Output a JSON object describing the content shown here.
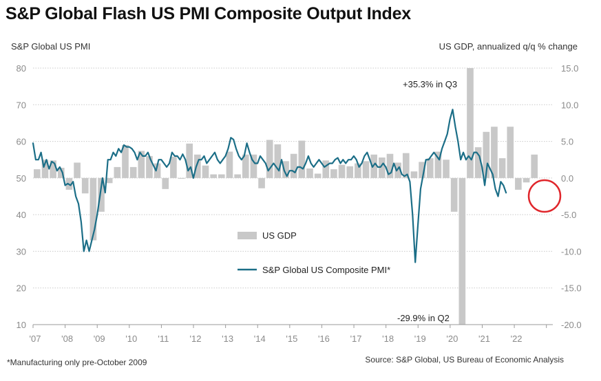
{
  "title": "S&P Global Flash US PMI Composite Output Index",
  "left_axis_title": "S&P Global US PMI",
  "right_axis_title": "US GDP, annualized q/q % change",
  "footnote": "*Manufacturing only pre-October 2009",
  "source": "Source: S&P Global, US Bureau of Economic Analysis",
  "colors": {
    "gdp": "#c8c8c8",
    "pmi": "#1b6e87",
    "highlight": "#e0262b",
    "grid": "#c9c9c9"
  },
  "chart_data": {
    "type": "bar+line",
    "title": "S&P Global Flash US PMI Composite Output Index",
    "ylabel_left": "S&P Global US PMI",
    "ylabel_right": "US GDP, annualized q/q % change",
    "ylim_left": [
      10,
      80
    ],
    "ylim_right": [
      -20,
      15
    ],
    "yticks_left": [
      "80",
      "70",
      "60",
      "50",
      "40",
      "30",
      "20",
      "10"
    ],
    "yticks_right": [
      "15.0",
      "10.0",
      "5.0",
      "0.0",
      "-5.0",
      "-10.0",
      "-15.0",
      "-20.0"
    ],
    "x_range": [
      2007,
      2023.2
    ],
    "x_ticks": [
      {
        "label": "'07",
        "year": 2007
      },
      {
        "label": "'08",
        "year": 2008
      },
      {
        "label": "'09",
        "year": 2009
      },
      {
        "label": "'10",
        "year": 2010
      },
      {
        "label": "'11",
        "year": 2011
      },
      {
        "label": "'12",
        "year": 2012
      },
      {
        "label": "'13",
        "year": 2013
      },
      {
        "label": "'14",
        "year": 2014
      },
      {
        "label": "'15",
        "year": 2015
      },
      {
        "label": "'16",
        "year": 2016
      },
      {
        "label": "'17",
        "year": 2017
      },
      {
        "label": "'18",
        "year": 2018
      },
      {
        "label": "'19",
        "year": 2019
      },
      {
        "label": "'20",
        "year": 2020
      },
      {
        "label": "'21",
        "year": 2021
      },
      {
        "label": "'22",
        "year": 2022
      }
    ],
    "gdp_start": 2007,
    "gdp_values": [
      1.2,
      2.5,
      2.4,
      1.4,
      -1.6,
      2.1,
      -2.1,
      -8.5,
      -4.6,
      -0.7,
      1.5,
      4.5,
      1.5,
      3.7,
      3.0,
      2.0,
      -1.5,
      2.9,
      -0.1,
      4.7,
      3.2,
      1.7,
      0.5,
      0.5,
      3.6,
      0.5,
      3.2,
      3.2,
      -1.4,
      5.2,
      4.6,
      2.3,
      3.3,
      5.1,
      1.3,
      0.6,
      2.4,
      1.2,
      1.8,
      1.6,
      2.0,
      2.3,
      3.2,
      2.8,
      3.3,
      2.1,
      3.4,
      0.9,
      2.2,
      2.7,
      3.6,
      2.5,
      -4.6,
      -29.9,
      35.3,
      4.2,
      6.3,
      7.0,
      2.7,
      7.0,
      -1.6,
      -0.6,
      3.2
    ],
    "pmi_start": 2007.0,
    "pmi_step": 0.0833,
    "pmi_values": [
      59.5,
      55,
      55,
      57,
      53,
      55,
      52.5,
      54.5,
      54,
      52,
      53,
      51.5,
      48,
      48.5,
      48,
      49,
      45,
      43,
      38,
      30,
      33,
      30,
      33,
      36,
      40,
      45,
      50,
      46,
      55,
      55,
      57,
      56,
      58,
      57,
      59,
      58.5,
      58.5,
      58,
      57,
      55,
      57,
      56,
      56,
      57,
      55,
      53.5,
      52,
      55,
      55,
      54,
      53,
      54,
      57,
      56,
      56,
      55,
      56.5,
      55,
      52,
      53,
      50,
      53,
      55,
      55,
      56,
      54,
      55,
      56,
      57,
      55,
      54,
      55,
      56,
      58,
      61,
      60.5,
      58,
      56,
      55,
      56,
      59.5,
      57,
      55,
      54,
      54,
      56,
      55,
      54,
      52,
      53,
      54,
      53,
      52,
      55,
      52,
      50.5,
      52,
      52,
      51.5,
      53,
      53,
      52.5,
      54,
      56,
      54,
      53,
      54,
      55,
      54,
      53,
      53.5,
      54,
      54,
      55,
      55.5,
      54,
      55,
      54,
      55,
      55,
      56,
      55,
      53,
      54,
      56,
      57,
      55,
      53,
      54,
      53,
      53,
      54,
      53,
      51,
      51.5,
      54,
      52,
      53,
      51,
      50.5,
      51,
      49,
      40,
      27,
      37,
      47,
      51,
      55,
      55,
      56,
      57,
      56,
      55,
      58,
      60,
      62,
      66,
      68.7,
      64,
      60,
      55,
      57,
      55,
      56,
      55,
      57,
      57,
      56,
      53,
      48,
      54,
      52.5,
      51,
      47,
      45,
      49,
      48,
      46
    ],
    "annotations": [
      "+35.3% in Q3",
      "-29.9% in Q2"
    ],
    "legend": [
      "US GDP",
      "S&P Global US Composite PMI*"
    ]
  }
}
